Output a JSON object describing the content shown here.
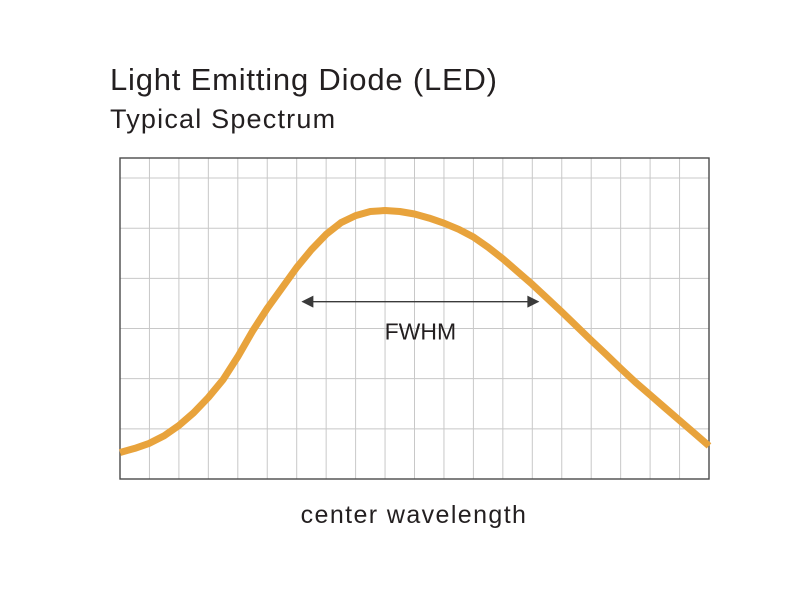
{
  "chart_data": {
    "type": "line",
    "title": "Light Emitting Diode (LED)",
    "subtitle": "Typical Spectrum",
    "xlabel": "center wavelength",
    "ylabel": "",
    "grid": true,
    "legend": "none",
    "xlim": [
      0,
      20
    ],
    "ylim": [
      0,
      6.3
    ],
    "series": [
      {
        "color": "#e8a33c",
        "x": [
          0,
          0.5,
          1,
          1.5,
          2,
          2.5,
          3,
          3.5,
          4,
          4.5,
          5,
          5.5,
          6,
          6.5,
          7,
          7.5,
          8,
          8.5,
          9,
          9.5,
          10,
          10.5,
          11,
          11.5,
          12,
          12.5,
          13,
          13.5,
          14,
          14.5,
          15,
          15.5,
          16,
          16.5,
          17,
          17.5,
          18,
          18.5,
          19,
          19.5,
          20
        ],
        "y": [
          0.52,
          0.6,
          0.7,
          0.85,
          1.05,
          1.3,
          1.6,
          1.95,
          2.4,
          2.9,
          3.35,
          3.75,
          4.15,
          4.5,
          4.8,
          5.03,
          5.17,
          5.25,
          5.27,
          5.25,
          5.2,
          5.12,
          5.02,
          4.9,
          4.75,
          4.55,
          4.32,
          4.07,
          3.82,
          3.55,
          3.28,
          3.0,
          2.72,
          2.45,
          2.17,
          1.9,
          1.65,
          1.4,
          1.15,
          0.9,
          0.65
        ]
      }
    ],
    "annotations": [
      {
        "text": "FWHM",
        "x_start": 6.2,
        "x_end": 14.2,
        "y": 3.48
      }
    ]
  }
}
